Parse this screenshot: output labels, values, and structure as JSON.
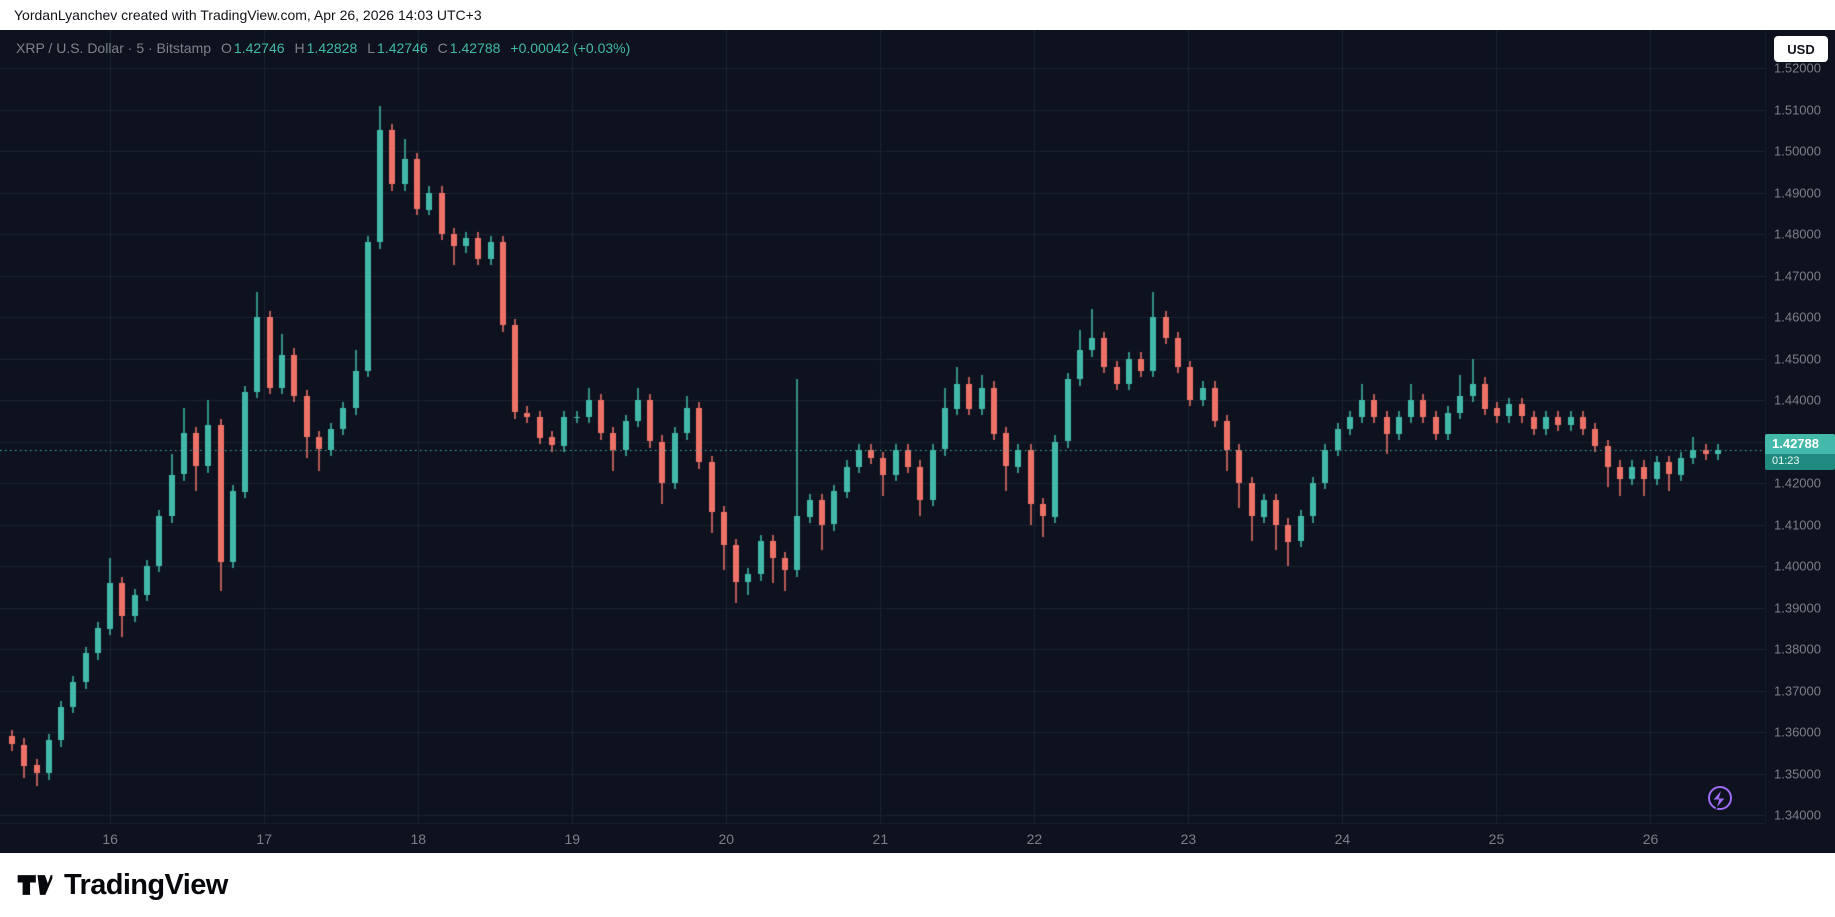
{
  "attribution": {
    "text": "YordanLyanchev created with TradingView.com, Apr 26, 2026 14:03 UTC+3"
  },
  "header": {
    "symbol_title": "XRP / U.S. Dollar · 5 · Bitstamp",
    "ohlc": {
      "o_label": "O",
      "o": "1.42746",
      "h_label": "H",
      "h": "1.42828",
      "l_label": "L",
      "l": "1.42746",
      "c_label": "C",
      "c": "1.42788",
      "change": "+0.00042 (+0.03%)"
    }
  },
  "currency_button": {
    "label": "USD"
  },
  "price_label": {
    "value": "1.42788",
    "countdown": "01:23",
    "price": 1.42788
  },
  "footer": {
    "brand": "TradingView"
  },
  "colors": {
    "bg": "#0d121e",
    "grid": "#1b2232",
    "axis_text": "#7b7f8a",
    "up": "#42b9a9",
    "down": "#ee7268",
    "badge_price_bg": "#42b9a9",
    "badge_countdown_bg": "#1f8a7d",
    "flash_icon": "#a06bf5"
  },
  "chart_data": {
    "type": "candlestick",
    "title": "XRP / U.S. Dollar",
    "interval": "5",
    "exchange": "Bitstamp",
    "legend_position": "top-left",
    "grid": true,
    "y_range": {
      "top": 1.5292,
      "bottom": 1.3381
    },
    "y_ticks": [
      "1.52000",
      "1.51000",
      "1.50000",
      "1.49000",
      "1.48000",
      "1.47000",
      "1.46000",
      "1.45000",
      "1.44000",
      "1.43000",
      "1.42000",
      "1.41000",
      "1.40000",
      "1.39000",
      "1.38000",
      "1.37000",
      "1.36000",
      "1.35000",
      "1.34000"
    ],
    "x_ticks": [
      {
        "label": "16",
        "i": 8
      },
      {
        "label": "17",
        "i": 20.55
      },
      {
        "label": "18",
        "i": 33.1
      },
      {
        "label": "19",
        "i": 45.65
      },
      {
        "label": "20",
        "i": 58.2
      },
      {
        "label": "21",
        "i": 70.75
      },
      {
        "label": "22",
        "i": 83.3
      },
      {
        "label": "23",
        "i": 95.85
      },
      {
        "label": "24",
        "i": 108.4
      },
      {
        "label": "25",
        "i": 120.95
      },
      {
        "label": "26",
        "i": 133.5
      }
    ],
    "last_price": 1.42788,
    "candles": [
      [
        1.359,
        1.3605,
        1.3555,
        1.357
      ],
      [
        1.357,
        1.3585,
        1.349,
        1.352
      ],
      [
        1.352,
        1.3535,
        1.347,
        1.35
      ],
      [
        1.35,
        1.3595,
        1.3485,
        1.358
      ],
      [
        1.358,
        1.3675,
        1.3565,
        1.366
      ],
      [
        1.366,
        1.3735,
        1.3645,
        1.372
      ],
      [
        1.372,
        1.3805,
        1.3705,
        1.379
      ],
      [
        1.379,
        1.3865,
        1.3775,
        1.385
      ],
      [
        1.385,
        1.402,
        1.3835,
        1.396
      ],
      [
        1.396,
        1.3975,
        1.383,
        1.388
      ],
      [
        1.388,
        1.3945,
        1.3865,
        1.393
      ],
      [
        1.393,
        1.4015,
        1.3915,
        1.4
      ],
      [
        1.4,
        1.4135,
        1.3985,
        1.412
      ],
      [
        1.412,
        1.427,
        1.4105,
        1.422
      ],
      [
        1.422,
        1.438,
        1.4205,
        1.432
      ],
      [
        1.432,
        1.4335,
        1.418,
        1.424
      ],
      [
        1.424,
        1.44,
        1.4225,
        1.434
      ],
      [
        1.434,
        1.4355,
        1.394,
        1.401
      ],
      [
        1.401,
        1.4195,
        1.3995,
        1.418
      ],
      [
        1.418,
        1.4435,
        1.4165,
        1.442
      ],
      [
        1.442,
        1.466,
        1.4405,
        1.46
      ],
      [
        1.46,
        1.4615,
        1.4415,
        1.443
      ],
      [
        1.443,
        1.456,
        1.4415,
        1.451
      ],
      [
        1.451,
        1.4525,
        1.4395,
        1.441
      ],
      [
        1.441,
        1.4425,
        1.426,
        1.431
      ],
      [
        1.431,
        1.4325,
        1.423,
        1.428
      ],
      [
        1.428,
        1.4345,
        1.4265,
        1.433
      ],
      [
        1.433,
        1.4395,
        1.4315,
        1.438
      ],
      [
        1.438,
        1.452,
        1.4365,
        1.447
      ],
      [
        1.447,
        1.4795,
        1.4455,
        1.478
      ],
      [
        1.478,
        1.511,
        1.4765,
        1.505
      ],
      [
        1.505,
        1.5065,
        1.4905,
        1.492
      ],
      [
        1.492,
        1.503,
        1.4905,
        1.498
      ],
      [
        1.498,
        1.4995,
        1.4845,
        1.486
      ],
      [
        1.486,
        1.4915,
        1.4845,
        1.49
      ],
      [
        1.49,
        1.4915,
        1.4785,
        1.48
      ],
      [
        1.48,
        1.4815,
        1.4725,
        1.477
      ],
      [
        1.477,
        1.4805,
        1.4755,
        1.479
      ],
      [
        1.479,
        1.4805,
        1.4725,
        1.474
      ],
      [
        1.474,
        1.4795,
        1.4725,
        1.478
      ],
      [
        1.478,
        1.4795,
        1.4565,
        1.458
      ],
      [
        1.458,
        1.4595,
        1.4355,
        1.437
      ],
      [
        1.437,
        1.4385,
        1.4345,
        1.436
      ],
      [
        1.436,
        1.4375,
        1.4295,
        1.431
      ],
      [
        1.431,
        1.4325,
        1.4275,
        1.429
      ],
      [
        1.429,
        1.4375,
        1.4275,
        1.436
      ],
      [
        1.436,
        1.4375,
        1.4345,
        1.436
      ],
      [
        1.436,
        1.443,
        1.4345,
        1.44
      ],
      [
        1.44,
        1.4415,
        1.4305,
        1.432
      ],
      [
        1.432,
        1.4335,
        1.423,
        1.428
      ],
      [
        1.428,
        1.4365,
        1.4265,
        1.435
      ],
      [
        1.435,
        1.443,
        1.4335,
        1.44
      ],
      [
        1.44,
        1.4415,
        1.4285,
        1.43
      ],
      [
        1.43,
        1.4315,
        1.415,
        1.42
      ],
      [
        1.42,
        1.4335,
        1.4185,
        1.432
      ],
      [
        1.432,
        1.441,
        1.4305,
        1.438
      ],
      [
        1.438,
        1.4395,
        1.4235,
        1.425
      ],
      [
        1.425,
        1.4265,
        1.408,
        1.413
      ],
      [
        1.413,
        1.4145,
        1.399,
        1.405
      ],
      [
        1.405,
        1.4065,
        1.391,
        1.396
      ],
      [
        1.396,
        1.3995,
        1.393,
        1.398
      ],
      [
        1.398,
        1.4075,
        1.3965,
        1.406
      ],
      [
        1.406,
        1.4075,
        1.396,
        1.402
      ],
      [
        1.402,
        1.4035,
        1.394,
        1.399
      ],
      [
        1.399,
        1.445,
        1.3975,
        1.412
      ],
      [
        1.412,
        1.4175,
        1.4105,
        1.416
      ],
      [
        1.416,
        1.4175,
        1.404,
        1.41
      ],
      [
        1.41,
        1.4195,
        1.4085,
        1.418
      ],
      [
        1.418,
        1.4255,
        1.4165,
        1.424
      ],
      [
        1.424,
        1.4295,
        1.4225,
        1.428
      ],
      [
        1.428,
        1.4295,
        1.4245,
        1.426
      ],
      [
        1.426,
        1.4275,
        1.417,
        1.422
      ],
      [
        1.422,
        1.4295,
        1.4205,
        1.428
      ],
      [
        1.428,
        1.4295,
        1.4225,
        1.424
      ],
      [
        1.424,
        1.4255,
        1.412,
        1.416
      ],
      [
        1.416,
        1.4295,
        1.4145,
        1.428
      ],
      [
        1.428,
        1.443,
        1.4265,
        1.438
      ],
      [
        1.438,
        1.448,
        1.4365,
        1.444
      ],
      [
        1.444,
        1.4455,
        1.4365,
        1.438
      ],
      [
        1.438,
        1.446,
        1.4365,
        1.443
      ],
      [
        1.443,
        1.4445,
        1.4305,
        1.432
      ],
      [
        1.432,
        1.4335,
        1.418,
        1.424
      ],
      [
        1.424,
        1.4295,
        1.4225,
        1.428
      ],
      [
        1.428,
        1.4295,
        1.41,
        1.415
      ],
      [
        1.415,
        1.4165,
        1.407,
        1.412
      ],
      [
        1.412,
        1.4315,
        1.4105,
        1.43
      ],
      [
        1.43,
        1.4465,
        1.4285,
        1.445
      ],
      [
        1.445,
        1.457,
        1.4435,
        1.452
      ],
      [
        1.452,
        1.462,
        1.4505,
        1.455
      ],
      [
        1.455,
        1.4565,
        1.4465,
        1.448
      ],
      [
        1.448,
        1.4495,
        1.4425,
        1.444
      ],
      [
        1.444,
        1.4515,
        1.4425,
        1.45
      ],
      [
        1.45,
        1.4515,
        1.4455,
        1.447
      ],
      [
        1.447,
        1.466,
        1.4455,
        1.46
      ],
      [
        1.46,
        1.4615,
        1.4535,
        1.455
      ],
      [
        1.455,
        1.4565,
        1.4465,
        1.448
      ],
      [
        1.448,
        1.4495,
        1.4385,
        1.44
      ],
      [
        1.44,
        1.4445,
        1.4385,
        1.443
      ],
      [
        1.443,
        1.4445,
        1.4335,
        1.435
      ],
      [
        1.435,
        1.4365,
        1.423,
        1.428
      ],
      [
        1.428,
        1.4295,
        1.414,
        1.42
      ],
      [
        1.42,
        1.4215,
        1.406,
        1.412
      ],
      [
        1.412,
        1.4175,
        1.4105,
        1.416
      ],
      [
        1.416,
        1.4175,
        1.404,
        1.41
      ],
      [
        1.41,
        1.4115,
        1.4,
        1.406
      ],
      [
        1.406,
        1.4135,
        1.4045,
        1.412
      ],
      [
        1.412,
        1.4215,
        1.4105,
        1.42
      ],
      [
        1.42,
        1.4295,
        1.4185,
        1.428
      ],
      [
        1.428,
        1.4345,
        1.4265,
        1.433
      ],
      [
        1.433,
        1.4375,
        1.4315,
        1.436
      ],
      [
        1.436,
        1.444,
        1.4345,
        1.44
      ],
      [
        1.44,
        1.4415,
        1.4345,
        1.436
      ],
      [
        1.436,
        1.4375,
        1.427,
        1.432
      ],
      [
        1.432,
        1.4375,
        1.4305,
        1.436
      ],
      [
        1.436,
        1.444,
        1.4345,
        1.44
      ],
      [
        1.44,
        1.4415,
        1.4345,
        1.436
      ],
      [
        1.436,
        1.4375,
        1.4305,
        1.432
      ],
      [
        1.432,
        1.4385,
        1.4305,
        1.437
      ],
      [
        1.437,
        1.446,
        1.4355,
        1.441
      ],
      [
        1.441,
        1.45,
        1.4395,
        1.444
      ],
      [
        1.444,
        1.4455,
        1.4365,
        1.438
      ],
      [
        1.438,
        1.4395,
        1.4345,
        1.436
      ],
      [
        1.436,
        1.4405,
        1.4345,
        1.439
      ],
      [
        1.439,
        1.4405,
        1.4345,
        1.436
      ],
      [
        1.436,
        1.4375,
        1.4315,
        1.433
      ],
      [
        1.433,
        1.4375,
        1.4315,
        1.436
      ],
      [
        1.436,
        1.4375,
        1.4325,
        1.434
      ],
      [
        1.434,
        1.4375,
        1.4325,
        1.436
      ],
      [
        1.436,
        1.4375,
        1.4315,
        1.433
      ],
      [
        1.433,
        1.4345,
        1.4275,
        1.429
      ],
      [
        1.429,
        1.4305,
        1.419,
        1.424
      ],
      [
        1.424,
        1.4255,
        1.417,
        1.421
      ],
      [
        1.421,
        1.4255,
        1.4195,
        1.424
      ],
      [
        1.424,
        1.4255,
        1.417,
        1.421
      ],
      [
        1.421,
        1.4265,
        1.4195,
        1.425
      ],
      [
        1.425,
        1.4265,
        1.418,
        1.422
      ],
      [
        1.422,
        1.4275,
        1.4205,
        1.426
      ],
      [
        1.426,
        1.431,
        1.4245,
        1.428
      ],
      [
        1.428,
        1.4295,
        1.4255,
        1.427
      ],
      [
        1.427,
        1.4295,
        1.4255,
        1.42788
      ]
    ]
  }
}
